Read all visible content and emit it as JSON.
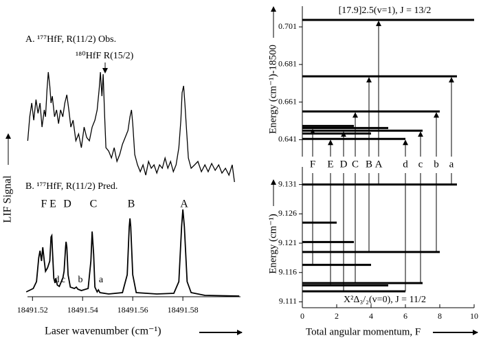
{
  "chart_data": [
    {
      "type": "spectrum",
      "xlabel": "Laser wavenumber (cm⁻¹)",
      "ylabel": "LIF Signal",
      "xlim": [
        18491.518,
        18491.603
      ],
      "xticks": [
        18491.52,
        18491.54,
        18491.56,
        18491.58
      ],
      "ylim": [
        0,
        337
      ],
      "annotations": [
        "A. ¹⁷⁷HfF, R(11/2) Obs.",
        "¹⁸⁰HfF R(15/2)",
        "B. ¹⁷⁷HfF, R(11/2) Pred."
      ],
      "peak_labels": [
        "F",
        "E",
        "D",
        "C",
        "B",
        "A",
        "d",
        "c",
        "b",
        "a"
      ],
      "series": [
        {
          "color": "#000000",
          "x": [
            18491.5181,
            18491.5189,
            18491.5197,
            18491.5205,
            18491.5214,
            18491.5222,
            18491.523,
            18491.5238,
            18491.5247,
            18491.5252,
            18491.5258,
            18491.5263,
            18491.5269,
            18491.5274,
            18491.5279,
            18491.5288,
            18491.5296,
            18491.5304,
            18491.5312,
            18491.5321,
            18491.5329,
            18491.5337,
            18491.5345,
            18491.5353,
            18491.5362,
            18491.5373,
            18491.5384,
            18491.5395,
            18491.5406,
            18491.5416,
            18491.5427,
            18491.5438,
            18491.5449,
            18491.5458,
            18491.5466,
            18491.5471,
            18491.5477,
            18491.5482,
            18491.5488,
            18491.5493,
            18491.5504,
            18491.5515,
            18491.5526,
            18491.5537,
            18491.5548,
            18491.5559,
            18491.557,
            18491.5581,
            18491.5589,
            18491.5595,
            18491.56,
            18491.5608,
            18491.5619,
            18491.563,
            18491.5641,
            18491.5652,
            18491.5663,
            18491.5674,
            18491.5685,
            18491.5696,
            18491.5707,
            18491.5718,
            18491.5729,
            18491.574,
            18491.5751,
            18491.5762,
            18491.5773,
            18491.5784,
            18491.5792,
            18491.5797,
            18491.5803,
            18491.5808,
            18491.5814,
            18491.5822,
            18491.5833,
            18491.5847,
            18491.586,
            18491.5874,
            18491.5888,
            18491.5901,
            18491.5915,
            18491.5929,
            18491.5943,
            18491.5956,
            18491.597,
            18491.5984,
            18491.5997,
            18491.6006
          ],
          "values": [
            227,
            262,
            282,
            257,
            287,
            267,
            282,
            247,
            272,
            262,
            302,
            327,
            307,
            282,
            292,
            262,
            272,
            252,
            272,
            262,
            282,
            294,
            272,
            247,
            257,
            227,
            237,
            217,
            247,
            232,
            227,
            247,
            257,
            272,
            302,
            327,
            292,
            324,
            262,
            217,
            212,
            202,
            217,
            197,
            207,
            222,
            232,
            242,
            262,
            272,
            252,
            207,
            192,
            182,
            192,
            177,
            197,
            187,
            192,
            180,
            192,
            187,
            202,
            187,
            197,
            182,
            192,
            217,
            257,
            297,
            307,
            282,
            247,
            202,
            187,
            192,
            197,
            182,
            192,
            182,
            194,
            184,
            192,
            180,
            187,
            177,
            192,
            167
          ]
        },
        {
          "color": "#000000",
          "x": [
            18491.5175,
            18491.5203,
            18491.5216,
            18491.5225,
            18491.523,
            18491.5236,
            18491.5241,
            18491.5247,
            18491.5252,
            18491.526,
            18491.5269,
            18491.5274,
            18491.5277,
            18491.5279,
            18491.5285,
            18491.529,
            18491.5293,
            18491.5299,
            18491.5307,
            18491.5315,
            18491.5321,
            18491.5326,
            18491.5332,
            18491.5334,
            18491.5337,
            18491.5342,
            18491.5351,
            18491.5367,
            18491.5375,
            18491.5381,
            18491.5395,
            18491.5422,
            18491.5433,
            18491.5438,
            18491.5444,
            18491.5449,
            18491.5458,
            18491.5463,
            18491.5469,
            18491.5504,
            18491.5559,
            18491.5578,
            18491.5586,
            18491.5589,
            18491.5592,
            18491.56,
            18491.5614,
            18491.5696,
            18491.5764,
            18491.5784,
            18491.5795,
            18491.58,
            18491.5806,
            18491.5817,
            18491.5833,
            18491.5888,
            18491.6025
          ],
          "values": [
            7,
            12,
            22,
            57,
            67,
            52,
            72,
            52,
            37,
            42,
            52,
            87,
            89,
            72,
            27,
            20,
            27,
            17,
            15,
            22,
            27,
            37,
            72,
            80,
            72,
            32,
            14,
            12,
            14,
            11,
            9,
            12,
            52,
            95,
            62,
            14,
            7,
            10,
            6,
            4,
            6,
            32,
            102,
            114,
            102,
            32,
            6,
            4,
            5,
            22,
            102,
            127,
            102,
            22,
            6,
            2,
            1
          ]
        }
      ]
    },
    {
      "type": "levels",
      "title": "[17.9]2.5(v=1), J = 13/2",
      "ylabel": "Energy (cm⁻¹)-18500",
      "xlim": [
        0,
        10
      ],
      "ylim": [
        0.632,
        0.712
      ],
      "yticks": [
        0.641,
        0.661,
        0.681,
        0.701
      ],
      "color": "#000000",
      "x": [
        10,
        9,
        8,
        3,
        5,
        7,
        4,
        6
      ],
      "values": [
        0.7047,
        0.6747,
        0.656,
        0.6483,
        0.6472,
        0.6458,
        0.6443,
        0.6414
      ]
    },
    {
      "type": "levels",
      "title": "X²Δ₃/₂(v=0), J = 11/2",
      "ylabel": "Energy (cm⁻¹)",
      "xlabel": "Total angular momentum, F",
      "xlim": [
        0,
        10
      ],
      "xticks": [
        0,
        2,
        4,
        6,
        8,
        10
      ],
      "ylim": [
        9.11,
        9.134
      ],
      "yticks": [
        9.111,
        9.116,
        9.121,
        9.126,
        9.131
      ],
      "color": "#000000",
      "x": [
        9,
        2,
        3,
        8,
        4,
        7,
        5,
        6
      ],
      "values": [
        9.131,
        9.1245,
        9.1212,
        9.1195,
        9.1173,
        9.1142,
        9.1138,
        9.1128
      ]
    }
  ]
}
